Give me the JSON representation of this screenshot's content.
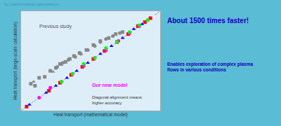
{
  "chart_data": {
    "type": "scatter",
    "xlabel": "Heat transport (mathematical model)",
    "ylabel": "Heat transport (large-scale calculation)",
    "xlim": [
      0,
      1
    ],
    "ylim": [
      0,
      1
    ],
    "tick_labels": false,
    "grid": false,
    "series": [
      {
        "type": "line",
        "color": "gray",
        "line_style": "dashed",
        "x": [
          0,
          1
        ],
        "y": [
          0,
          1
        ]
      },
      {
        "color": "#888888",
        "marker": "square",
        "x": [
          0.07,
          0.1,
          0.13,
          0.17,
          0.21,
          0.25,
          0.28,
          0.32,
          0.35,
          0.38,
          0.42,
          0.47,
          0.52,
          0.57,
          0.63,
          0.68,
          0.73
        ],
        "y": [
          0.27,
          0.25,
          0.33,
          0.34,
          0.4,
          0.43,
          0.47,
          0.49,
          0.52,
          0.55,
          0.58,
          0.61,
          0.66,
          0.7,
          0.73,
          0.77,
          0.79
        ]
      },
      {
        "color": "#888888",
        "marker": "triangle",
        "x": [
          0.09,
          0.23,
          0.29
        ],
        "y": [
          0.29,
          0.39,
          0.46
        ]
      },
      {
        "color": "#888888",
        "marker": "circle",
        "x": [
          0.26,
          0.3,
          0.34,
          0.39,
          0.43,
          0.48,
          0.53,
          0.57,
          0.61,
          0.66,
          0.71
        ],
        "y": [
          0.44,
          0.48,
          0.51,
          0.54,
          0.57,
          0.61,
          0.65,
          0.69,
          0.72,
          0.75,
          0.78
        ]
      },
      {
        "color": "red",
        "marker": "square",
        "x": [
          0.04,
          0.2,
          0.28,
          0.36,
          0.44,
          0.52,
          0.6,
          0.69,
          0.77,
          0.84,
          0.89,
          0.93
        ],
        "y": [
          0.04,
          0.2,
          0.28,
          0.36,
          0.44,
          0.52,
          0.6,
          0.69,
          0.77,
          0.85,
          0.89,
          0.93
        ]
      },
      {
        "color": "blue",
        "marker": "triangle",
        "x": [
          0.06,
          0.18,
          0.25,
          0.33,
          0.4,
          0.48,
          0.57,
          0.65,
          0.73,
          0.81,
          0.87
        ],
        "y": [
          0.06,
          0.18,
          0.25,
          0.33,
          0.4,
          0.48,
          0.57,
          0.65,
          0.73,
          0.82,
          0.87
        ]
      },
      {
        "color": "magenta",
        "marker": "circle",
        "x": [
          0.13,
          0.21,
          0.29,
          0.37,
          0.45,
          0.53,
          0.61,
          0.7,
          0.78,
          0.85,
          0.91
        ],
        "y": [
          0.13,
          0.23,
          0.29,
          0.37,
          0.45,
          0.53,
          0.61,
          0.7,
          0.78,
          0.85,
          0.91
        ]
      },
      {
        "color": "lime",
        "marker": "circle",
        "x": [
          0.29,
          0.37,
          0.45,
          0.53,
          0.61,
          0.69,
          0.78,
          0.85,
          0.91
        ],
        "y": [
          0.29,
          0.37,
          0.47,
          0.53,
          0.63,
          0.69,
          0.79,
          0.86,
          0.91
        ]
      }
    ],
    "annotations": [
      {
        "text": "by mathematical optimization",
        "color": "#3399bb"
      },
      {
        "text": "About 1500 times faster!",
        "color": "#1100bb"
      },
      {
        "text": "Enables exploration of complex plasma\nflows in various conditions",
        "color": "#1100bb"
      },
      {
        "text": "Previous study",
        "color": "#555555"
      },
      {
        "text": "Our new model",
        "color": "magenta"
      },
      {
        "text": "Diagonal alignment means\nhigher accuracy",
        "color": "#333333"
      }
    ]
  }
}
